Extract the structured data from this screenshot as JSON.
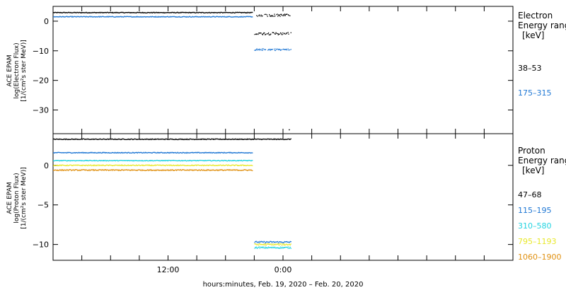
{
  "chart_data": [
    {
      "type": "scatter",
      "panel": "electron",
      "ylabel": [
        "ACE EPAM",
        "log(Electron Flux)",
        "[1/(cm²s ster MeV)]"
      ],
      "ylim": [
        -38,
        5
      ],
      "yticks": [
        0,
        -10,
        -20,
        -30
      ],
      "ytick_labels": [
        "0",
        "−10",
        "−20",
        "−30"
      ],
      "legend_title": [
        "Electron",
        "Energy ranges",
        "[keV]"
      ],
      "series": [
        {
          "name": "38–53",
          "color": "#000000",
          "segments": [
            {
              "x": [
                0,
                20.8
              ],
              "y": 2.9,
              "scatter": 0.12
            },
            {
              "x": [
                21.2,
                24.8
              ],
              "y": 2.0,
              "scatter": 0.4
            },
            {
              "x": [
                21.0,
                24.8
              ],
              "y": -4.2,
              "scatter": 0.4
            }
          ],
          "outliers": [
            {
              "x": 24.6,
              "y": -36.5
            }
          ]
        },
        {
          "name": "175–315",
          "color": "#1f77d4",
          "segments": [
            {
              "x": [
                0,
                20.8
              ],
              "y": 1.5,
              "scatter": 0.12
            },
            {
              "x": [
                21.0,
                24.8
              ],
              "y": -9.6,
              "scatter": 0.3
            }
          ],
          "outliers": []
        }
      ]
    },
    {
      "type": "scatter",
      "panel": "proton",
      "ylabel": [
        "ACE EPAM",
        "log(Proton Flux)",
        "[1/(cm²s ster MeV)]"
      ],
      "ylim": [
        -12,
        4
      ],
      "yticks": [
        0,
        -5,
        -10
      ],
      "ytick_labels": [
        "0",
        "−5",
        "−10"
      ],
      "legend_title": [
        "Proton",
        "Energy ranges",
        "[keV]"
      ],
      "series": [
        {
          "name": "47–68",
          "color": "#000000",
          "segments": [
            {
              "x": [
                0,
                24.8
              ],
              "y": 3.3,
              "scatter": 0.05
            }
          ]
        },
        {
          "name": "115–195",
          "color": "#1f77d4",
          "segments": [
            {
              "x": [
                0,
                20.8
              ],
              "y": 1.6,
              "scatter": 0.05
            },
            {
              "x": [
                21.0,
                24.8
              ],
              "y": -9.7,
              "scatter": 0.1
            }
          ]
        },
        {
          "name": "310–580",
          "color": "#22d3e0",
          "segments": [
            {
              "x": [
                0,
                20.8
              ],
              "y": 0.6,
              "scatter": 0.05
            },
            {
              "x": [
                21.0,
                24.8
              ],
              "y": -10.4,
              "scatter": 0.1
            }
          ]
        },
        {
          "name": "795–1193",
          "color": "#e8e82a",
          "segments": [
            {
              "x": [
                0,
                20.8
              ],
              "y": 0.0,
              "scatter": 0.06
            },
            {
              "x": [
                21.0,
                24.8
              ],
              "y": -10.0,
              "scatter": 0.1
            }
          ]
        },
        {
          "name": "1060–1900",
          "color": "#e09010",
          "segments": [
            {
              "x": [
                0,
                20.8
              ],
              "y": -0.6,
              "scatter": 0.07
            }
          ]
        }
      ]
    }
  ],
  "x_axis": {
    "range_hours": [
      0,
      48
    ],
    "labeled_ticks": [
      {
        "hour": 12,
        "label": "12:00"
      },
      {
        "hour": 24,
        "label": "0:00"
      }
    ],
    "title": "hours:minutes, Feb. 19, 2020 – Feb. 20, 2020"
  }
}
